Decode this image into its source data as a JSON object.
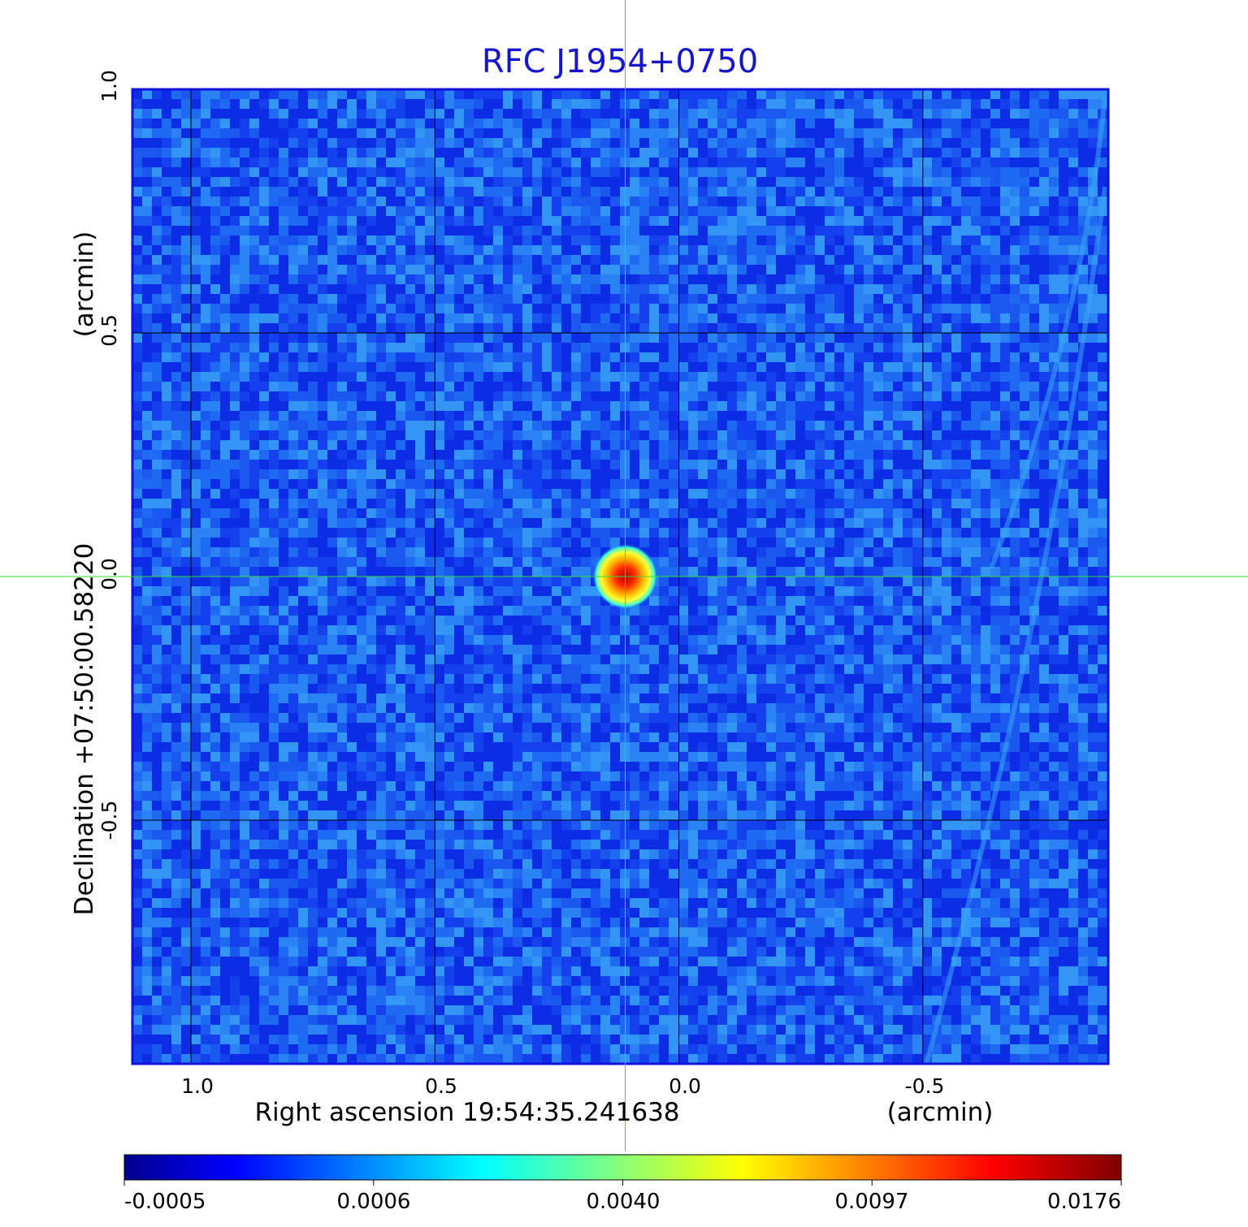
{
  "colors": {
    "title": "#1515d0",
    "frame": "#1212dd",
    "background_field": "#1a58f0",
    "grid": "#000000",
    "crosshair": "#33dd33"
  },
  "chart_data": {
    "type": "heatmap",
    "title": "RFC J1954+0750",
    "xlabel": "Right ascension  19:54:35.241638",
    "xunit": "(arcmin)",
    "ylabel": "Declination  +07:50:00.58220",
    "yunit": "(arcmin)",
    "x_ticks": [
      "1.0",
      "0.5",
      "0.0",
      "-0.5"
    ],
    "y_ticks": [
      "1.0",
      "0.5",
      "0.0",
      "-0.5"
    ],
    "xlim": [
      1.12,
      -0.88
    ],
    "ylim": [
      -1.0,
      1.0
    ],
    "grid": true,
    "crosshair": {
      "x": 0.11,
      "y": 0.0
    },
    "source": {
      "x": 0.11,
      "y": 0.0,
      "peak": 0.0176
    },
    "colorbar": {
      "colormap": "jet",
      "ticks": [
        "-0.0005",
        "0.0006",
        "0.0040",
        "0.0097",
        "0.0176"
      ]
    }
  }
}
